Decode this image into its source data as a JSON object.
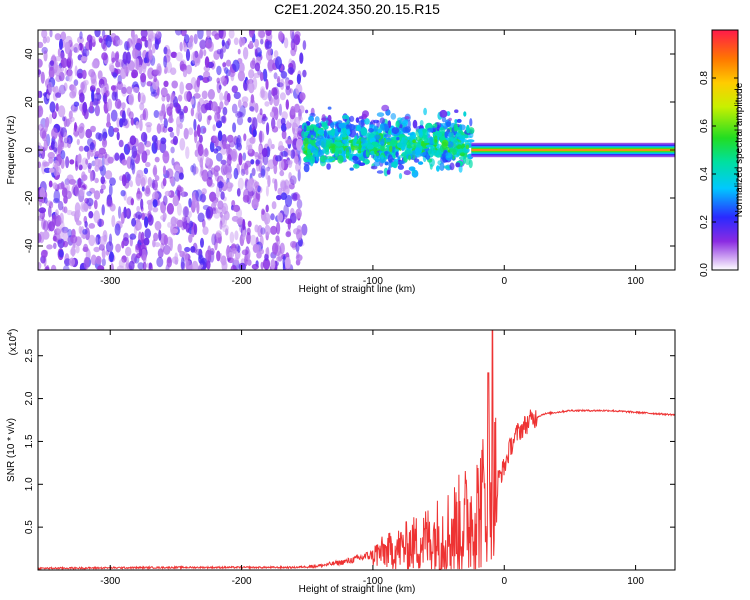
{
  "title": "C2E1.2024.350.20.15.R15",
  "chart_data": [
    {
      "type": "heatmap",
      "xlabel": "Height of straight line (km)",
      "ylabel": "Frequency (Hz)",
      "xlim": [
        -355,
        130
      ],
      "ylim": [
        -50,
        50
      ],
      "xticks": [
        -300,
        -200,
        -100,
        0,
        100
      ],
      "yticks": [
        -40,
        -20,
        0,
        20,
        40
      ],
      "colorbar": {
        "label": "Normalized spectral amplitude",
        "range": [
          0,
          1
        ],
        "ticks": [
          0.0,
          0.2,
          0.4,
          0.6,
          0.8
        ]
      },
      "regions": [
        {
          "x_range": [
            -355,
            -152
          ],
          "f_range": [
            -50,
            50
          ],
          "amplitude_range": [
            0.05,
            0.2
          ]
        },
        {
          "x_range": [
            -152,
            -25
          ],
          "f_range": [
            -12,
            18
          ],
          "amplitude_range": [
            0.1,
            0.6
          ]
        },
        {
          "x_range": [
            -25,
            130
          ],
          "f_center": 0,
          "f_halfwidth": 3,
          "peak_amplitude": 0.95
        }
      ]
    },
    {
      "type": "line",
      "xlabel": "Height of straight line (km)",
      "ylabel": "SNR (10 * v/v)",
      "yscale_label": "(x10",
      "yscale_exp": "4",
      "xlim": [
        -355,
        130
      ],
      "ylim": [
        0,
        2.8
      ],
      "xticks": [
        -300,
        -200,
        -100,
        0,
        100
      ],
      "yticks": [
        0.5,
        1.0,
        1.5,
        2.0,
        2.5
      ],
      "color": "#ee3333",
      "x": [
        -355,
        -250,
        -160,
        -140,
        -120,
        -100,
        -80,
        -60,
        -40,
        -30,
        -20,
        -15,
        -10,
        -5,
        0,
        5,
        10,
        20,
        30,
        50,
        80,
        100,
        130
      ],
      "y": [
        0.02,
        0.03,
        0.03,
        0.05,
        0.1,
        0.18,
        0.25,
        0.35,
        0.45,
        0.55,
        0.7,
        0.85,
        1.0,
        1.05,
        1.2,
        1.45,
        1.6,
        1.75,
        1.82,
        1.86,
        1.86,
        1.84,
        1.81
      ]
    }
  ]
}
